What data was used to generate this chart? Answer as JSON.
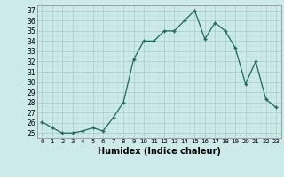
{
  "hours": [
    0,
    1,
    2,
    3,
    4,
    5,
    6,
    7,
    8,
    9,
    10,
    11,
    12,
    13,
    14,
    15,
    16,
    17,
    18,
    19,
    20,
    21,
    22,
    23
  ],
  "humidex": [
    26.1,
    25.5,
    25.0,
    25.0,
    25.2,
    25.5,
    25.2,
    26.5,
    28.0,
    32.2,
    34.0,
    34.0,
    35.0,
    35.0,
    36.0,
    37.0,
    34.2,
    35.8,
    35.0,
    33.3,
    29.8,
    32.0,
    28.3,
    27.5
  ],
  "xlabel": "Humidex (Indice chaleur)",
  "ylim": [
    24.5,
    37.5
  ],
  "xlim": [
    -0.5,
    23.5
  ],
  "yticks": [
    25,
    26,
    27,
    28,
    29,
    30,
    31,
    32,
    33,
    34,
    35,
    36,
    37
  ],
  "xticks": [
    0,
    1,
    2,
    3,
    4,
    5,
    6,
    7,
    8,
    9,
    10,
    11,
    12,
    13,
    14,
    15,
    16,
    17,
    18,
    19,
    20,
    21,
    22,
    23
  ],
  "line_color": "#1a6b5a",
  "marker": "+",
  "bg_color": "#cdeaea",
  "grid_major_color": "#a8c8c8",
  "grid_minor_color": "#bcd8d8",
  "spine_color": "#888888"
}
